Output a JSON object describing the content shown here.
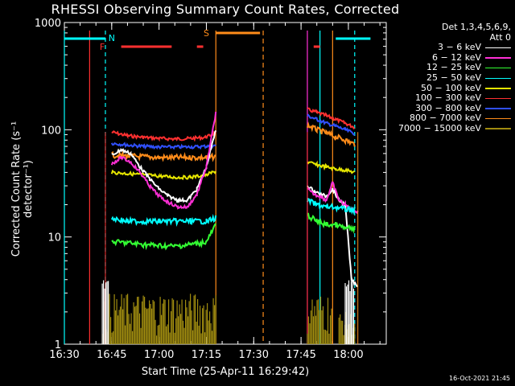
{
  "chart_data": {
    "type": "line",
    "title": "RHESSI Observing Summary Count Rates, Corrected",
    "xlabel": "Start Time (25-Apr-11 16:29:42)",
    "ylabel": "Corrected Count Rate (s⁻¹ detector⁻¹)",
    "xlim": [
      "16:30",
      "18:12"
    ],
    "ylim": [
      1,
      1000
    ],
    "yscale": "log",
    "xticks": [
      "16:30",
      "16:45",
      "17:00",
      "17:15",
      "17:30",
      "17:45",
      "18:00"
    ],
    "yticks": [
      "1",
      "10",
      "100",
      "1000"
    ],
    "legend": {
      "header": [
        "Det 1,3,4,5,6,9,",
        "Att 0"
      ],
      "entries": [
        {
          "label": "3 − 6 keV",
          "color": "#ffffff"
        },
        {
          "label": "6 − 12 keV",
          "color": "#ff2fd6"
        },
        {
          "label": "12 − 25 keV",
          "color": "#33ff33"
        },
        {
          "label": "25 − 50 keV",
          "color": "#00ffff"
        },
        {
          "label": "50 − 100 keV",
          "color": "#e6e600"
        },
        {
          "label": "100 − 300 keV",
          "color": "#ff3030"
        },
        {
          "label": "300 − 800 keV",
          "color": "#3050ff"
        },
        {
          "label": "800 − 7000 keV",
          "color": "#ff8c1a"
        },
        {
          "label": "7000 − 15000 keV",
          "color": "#a08c10"
        }
      ]
    },
    "flags": [
      {
        "label": "N",
        "color": "#00ffff"
      },
      {
        "label": "F",
        "color": "#ff3030"
      },
      {
        "label": "S",
        "color": "#ff8c1a"
      }
    ],
    "series": [
      {
        "color": "#ff3030",
        "segments": [
          {
            "x": [
              "16:45",
              "16:50",
              "16:55",
              "17:00",
              "17:05",
              "17:10",
              "17:15",
              "17:18"
            ],
            "y": [
              95,
              88,
              85,
              83,
              82,
              83,
              85,
              95
            ]
          },
          {
            "x": [
              "17:47",
              "17:50",
              "17:53",
              "17:56",
              "17:59",
              "18:02"
            ],
            "y": [
              155,
              145,
              135,
              125,
              115,
              105
            ]
          }
        ]
      },
      {
        "color": "#3050ff",
        "segments": [
          {
            "x": [
              "16:45",
              "16:50",
              "16:55",
              "17:00",
              "17:05",
              "17:10",
              "17:15",
              "17:18"
            ],
            "y": [
              75,
              72,
              70,
              69,
              69,
              69,
              70,
              71
            ]
          },
          {
            "x": [
              "17:47",
              "17:50",
              "17:53",
              "17:56",
              "17:59",
              "18:02"
            ],
            "y": [
              135,
              125,
              115,
              108,
              100,
              92
            ]
          }
        ]
      },
      {
        "color": "#ff8c1a",
        "segments": [
          {
            "x": [
              "16:45",
              "16:50",
              "16:55",
              "17:00",
              "17:05",
              "17:10",
              "17:15",
              "17:18"
            ],
            "y": [
              58,
              57,
              56,
              55,
              55,
              55,
              55,
              56
            ]
          },
          {
            "x": [
              "17:47",
              "17:50",
              "17:53",
              "17:56",
              "17:59",
              "18:02"
            ],
            "y": [
              110,
              100,
              93,
              86,
              80,
              73
            ]
          }
        ]
      },
      {
        "color": "#e6e600",
        "segments": [
          {
            "x": [
              "16:45",
              "16:50",
              "16:55",
              "17:00",
              "17:05",
              "17:10",
              "17:15",
              "17:18"
            ],
            "y": [
              40,
              39,
              38,
              37,
              36,
              36,
              38,
              41
            ]
          },
          {
            "x": [
              "17:47",
              "17:50",
              "17:53",
              "17:56",
              "17:59",
              "18:02"
            ],
            "y": [
              50,
              47,
              45,
              43,
              42,
              40
            ]
          }
        ]
      },
      {
        "color": "#ffffff",
        "segments": [
          {
            "x": [
              "16:45",
              "16:48",
              "16:51",
              "16:54",
              "16:57",
              "17:00",
              "17:03",
              "17:06",
              "17:09",
              "17:12",
              "17:15",
              "17:18"
            ],
            "y": [
              58,
              65,
              60,
              45,
              35,
              28,
              24,
              22,
              22,
              28,
              45,
              100
            ]
          },
          {
            "x": [
              "17:47",
              "17:49",
              "17:51",
              "17:53",
              "17:55",
              "17:57",
              "17:59",
              "18:01",
              "18:03"
            ],
            "y": [
              30,
              27,
              25,
              24,
              28,
              22,
              20,
              4,
              3.5
            ]
          }
        ]
      },
      {
        "color": "#ff2fd6",
        "segments": [
          {
            "x": [
              "16:45",
              "16:48",
              "16:51",
              "16:54",
              "16:57",
              "17:00",
              "17:03",
              "17:06",
              "17:09",
              "17:12",
              "17:15",
              "17:18"
            ],
            "y": [
              48,
              55,
              50,
              40,
              30,
              24,
              21,
              19,
              19,
              25,
              45,
              145
            ]
          },
          {
            "x": [
              "17:47",
              "17:49",
              "17:51",
              "17:53",
              "17:55",
              "17:57",
              "17:59",
              "18:01",
              "18:03"
            ],
            "y": [
              28,
              25,
              24,
              22,
              32,
              22,
              20,
              18,
              17
            ]
          }
        ]
      },
      {
        "color": "#00ffff",
        "segments": [
          {
            "x": [
              "16:45",
              "16:50",
              "16:55",
              "17:00",
              "17:05",
              "17:10",
              "17:15",
              "17:18"
            ],
            "y": [
              15,
              14,
              14,
              14,
              14,
              14,
              14,
              15
            ]
          },
          {
            "x": [
              "17:47",
              "17:50",
              "17:53",
              "17:56",
              "17:59",
              "18:02"
            ],
            "y": [
              22,
              20,
              19,
              19,
              18,
              18
            ]
          }
        ]
      },
      {
        "color": "#33ff33",
        "segments": [
          {
            "x": [
              "16:45",
              "16:50",
              "16:55",
              "17:00",
              "17:05",
              "17:10",
              "17:15",
              "17:18"
            ],
            "y": [
              9,
              8.8,
              8.5,
              8.3,
              8.2,
              8.5,
              9,
              13
            ]
          },
          {
            "x": [
              "17:47",
              "17:50",
              "17:53",
              "17:56",
              "17:59",
              "18:02"
            ],
            "y": [
              16,
              14,
              13,
              13,
              12,
              12
            ]
          }
        ]
      }
    ]
  },
  "footer": "16-Oct-2021 21:45"
}
